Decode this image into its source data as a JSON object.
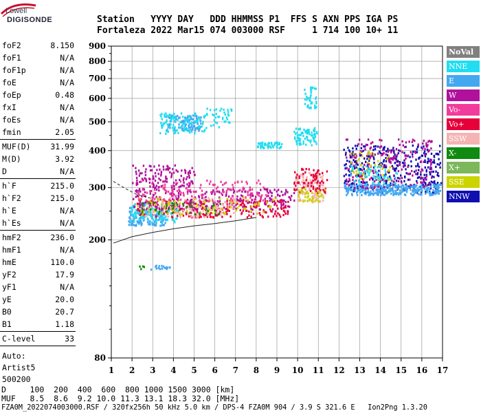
{
  "logo": {
    "line1": "Lowell",
    "line2": "DIGISONDE"
  },
  "header": {
    "labels_line": "Station   YYYY DAY   DDD HHMMSS P1  FFS S AXN PPS IGA PS",
    "values_line": "Fortaleza 2022 Mar15 074 003000 RSF     1 714 100 10+ 11"
  },
  "params": {
    "group1": [
      {
        "k": "foF2",
        "v": "8.150"
      },
      {
        "k": "foF1",
        "v": "N/A"
      },
      {
        "k": "foF1p",
        "v": "N/A"
      },
      {
        "k": "foE",
        "v": "N/A"
      },
      {
        "k": "foEp",
        "v": "0.48"
      },
      {
        "k": "fxI",
        "v": "N/A"
      },
      {
        "k": "foEs",
        "v": "N/A"
      },
      {
        "k": "fmin",
        "v": "2.05"
      }
    ],
    "group2": [
      {
        "k": "MUF(D)",
        "v": "31.99"
      },
      {
        "k": "M(D)",
        "v": "3.92"
      },
      {
        "k": "D",
        "v": "N/A"
      }
    ],
    "group3": [
      {
        "k": "h`F",
        "v": "215.0"
      },
      {
        "k": "h`F2",
        "v": "215.0"
      },
      {
        "k": "h`E",
        "v": "N/A"
      },
      {
        "k": "h`Es",
        "v": "N/A"
      }
    ],
    "group4": [
      {
        "k": "hmF2",
        "v": "236.0"
      },
      {
        "k": "hmF1",
        "v": "N/A"
      },
      {
        "k": "hmE",
        "v": "110.0"
      },
      {
        "k": "yF2",
        "v": "17.9"
      },
      {
        "k": "yF1",
        "v": "N/A"
      },
      {
        "k": "yE",
        "v": "20.0"
      },
      {
        "k": "B0",
        "v": "20.7"
      },
      {
        "k": "B1",
        "v": "1.18"
      }
    ],
    "group5": [
      {
        "k": "C-level",
        "v": "33"
      }
    ],
    "notes": [
      "Auto:",
      "Artist5",
      "500200"
    ]
  },
  "chart_data": {
    "type": "scatter",
    "title": "",
    "xlabel": "",
    "ylabel": "",
    "xlim": [
      1,
      17
    ],
    "ylim": [
      80,
      900
    ],
    "y_scale": "log",
    "x_ticks": [
      "1",
      "2",
      "3",
      "4",
      "5",
      "6",
      "7",
      "8",
      "9",
      "10",
      "11",
      "12",
      "13",
      "14",
      "15",
      "16",
      "17"
    ],
    "y_ticks": [
      "80",
      "200",
      "300",
      "400",
      "500",
      "600",
      "700",
      "800",
      "900"
    ],
    "y_tick_values": [
      80,
      200,
      300,
      400,
      500,
      600,
      700,
      800,
      900
    ],
    "grid": true,
    "series": [
      {
        "name": "NoVal",
        "color": "#808080"
      },
      {
        "name": "NNE",
        "color": "#22DDF0"
      },
      {
        "name": "E",
        "color": "#44A8F0"
      },
      {
        "name": "W",
        "color": "#B0109C"
      },
      {
        "name": "Vo-",
        "color": "#F23C9C"
      },
      {
        "name": "Vo+",
        "color": "#E6003A"
      },
      {
        "name": "SSW",
        "color": "#F4B4B4"
      },
      {
        "name": "X-",
        "color": "#108A10"
      },
      {
        "name": "X+",
        "color": "#7CB85A"
      },
      {
        "name": "SSE",
        "color": "#CCD400"
      },
      {
        "name": "NNW",
        "color": "#1010B0"
      }
    ],
    "clusters": [
      {
        "color": "#44A8F0",
        "x": [
          1.8,
          3.6
        ],
        "y": [
          225,
          260
        ],
        "n": 160
      },
      {
        "color": "#22DDF0",
        "x": [
          1.9,
          4.2
        ],
        "y": [
          230,
          270
        ],
        "n": 120
      },
      {
        "color": "#E6003A",
        "x": [
          2.2,
          9.6
        ],
        "y": [
          240,
          275
        ],
        "n": 260
      },
      {
        "color": "#B0109C",
        "x": [
          2.0,
          9.8
        ],
        "y": [
          255,
          300
        ],
        "n": 260
      },
      {
        "color": "#F4B4B4",
        "x": [
          2.5,
          7.0
        ],
        "y": [
          240,
          280
        ],
        "n": 130
      },
      {
        "color": "#CCD400",
        "x": [
          2.2,
          9.0
        ],
        "y": [
          245,
          280
        ],
        "n": 90
      },
      {
        "color": "#108A10",
        "x": [
          2.4,
          6.5
        ],
        "y": [
          245,
          270
        ],
        "n": 40
      },
      {
        "color": "#F23C9C",
        "x": [
          2.0,
          8.5
        ],
        "y": [
          270,
          320
        ],
        "n": 140
      },
      {
        "color": "#B0109C",
        "x": [
          2.0,
          5.0
        ],
        "y": [
          300,
          360
        ],
        "n": 120
      },
      {
        "color": "#44A8F0",
        "x": [
          3.6,
          5.3
        ],
        "y": [
          470,
          530
        ],
        "n": 110
      },
      {
        "color": "#22DDF0",
        "x": [
          3.3,
          5.5
        ],
        "y": [
          460,
          540
        ],
        "n": 100
      },
      {
        "color": "#22DDF0",
        "x": [
          5.5,
          6.8
        ],
        "y": [
          480,
          560
        ],
        "n": 40
      },
      {
        "color": "#22DDF0",
        "x": [
          8.0,
          9.2
        ],
        "y": [
          410,
          430
        ],
        "n": 50
      },
      {
        "color": "#22DDF0",
        "x": [
          9.8,
          10.9
        ],
        "y": [
          420,
          480
        ],
        "n": 80
      },
      {
        "color": "#22DDF0",
        "x": [
          10.3,
          10.9
        ],
        "y": [
          560,
          660
        ],
        "n": 40
      },
      {
        "color": "#F4B4B4",
        "x": [
          9.8,
          11.2
        ],
        "y": [
          270,
          340
        ],
        "n": 120
      },
      {
        "color": "#E6003A",
        "x": [
          9.8,
          11.4
        ],
        "y": [
          290,
          350
        ],
        "n": 80
      },
      {
        "color": "#CCD400",
        "x": [
          10.0,
          11.3
        ],
        "y": [
          270,
          300
        ],
        "n": 40
      },
      {
        "color": "#1010B0",
        "x": [
          12.2,
          16.9
        ],
        "y": [
          290,
          420
        ],
        "n": 360
      },
      {
        "color": "#44A8F0",
        "x": [
          12.2,
          16.9
        ],
        "y": [
          285,
          310
        ],
        "n": 300
      },
      {
        "color": "#B0109C",
        "x": [
          12.3,
          16.5
        ],
        "y": [
          300,
          440
        ],
        "n": 220
      },
      {
        "color": "#CCD400",
        "x": [
          12.5,
          14.5
        ],
        "y": [
          320,
          400
        ],
        "n": 50
      },
      {
        "color": "#22DDF0",
        "x": [
          12.5,
          14.8
        ],
        "y": [
          310,
          360
        ],
        "n": 60
      },
      {
        "color": "#108A10",
        "x": [
          1.9,
          2.6
        ],
        "y": [
          160,
          165
        ],
        "n": 4
      },
      {
        "color": "#44A8F0",
        "x": [
          2.8,
          3.8
        ],
        "y": [
          160,
          165
        ],
        "n": 20
      }
    ],
    "trace_lines": [
      {
        "x": [
          1.1,
          2.0,
          3.0,
          4.0,
          5.0,
          6.0,
          7.0,
          8.0
        ],
        "y": [
          195,
          205,
          212,
          218,
          223,
          227,
          232,
          238
        ]
      },
      {
        "x": [
          1.1,
          1.6,
          2.2,
          3.0
        ],
        "y": [
          315,
          300,
          285,
          275
        ]
      }
    ]
  },
  "footer": {
    "d_row": "D     100  200  400  600  800 1000 1500 3000 [km]",
    "muf_row": "MUF   8.5  8.6  9.2 10.0 11.3 13.1 18.3 32.0 [MHz]",
    "file_row": "FZA0M_2022074003000.RSF / 320fx256h 50 kHz 5.0 km / DPS-4 FZA0M 904 / 3.9 S 321.6 E   Ion2Png 1.3.20"
  }
}
